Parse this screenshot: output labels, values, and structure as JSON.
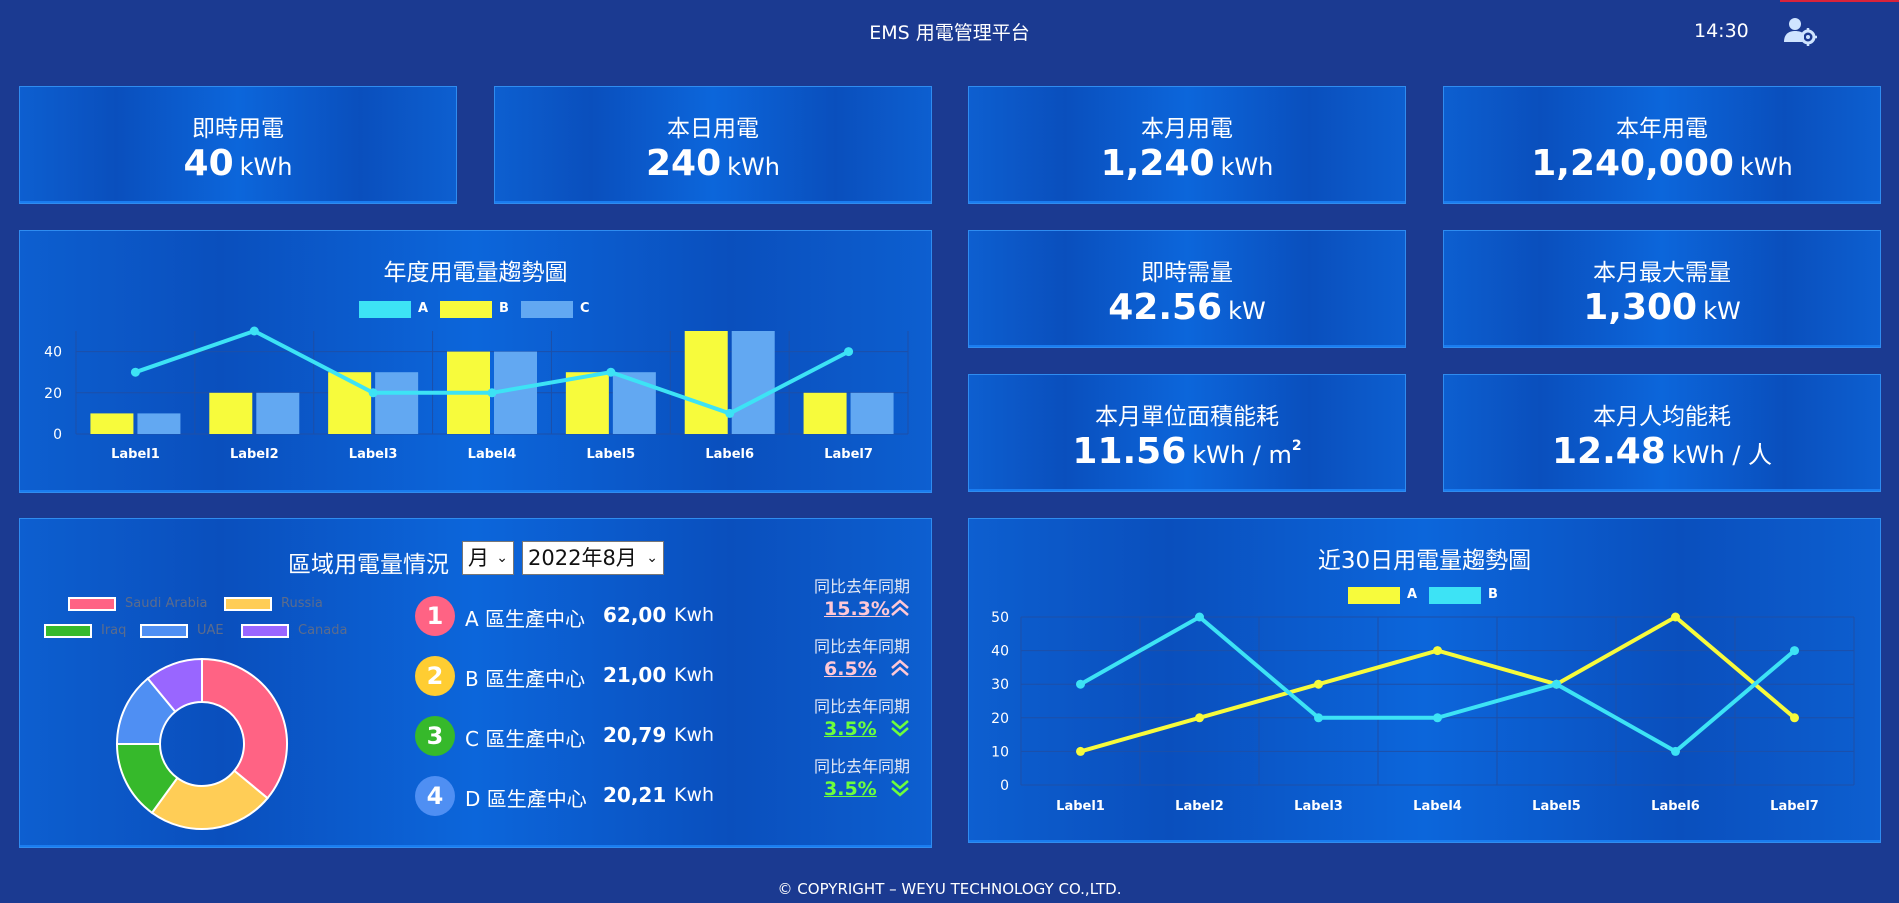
{
  "header": {
    "title": "EMS 用電管理平台",
    "time": "14:30",
    "user_icon": "user-settings-icon"
  },
  "stats": {
    "realtime": {
      "label": "即時用電",
      "value": "40",
      "unit": "kWh"
    },
    "today": {
      "label": "本日用電",
      "value": "240",
      "unit": "kWh"
    },
    "month": {
      "label": "本月用電",
      "value": "1,240",
      "unit": "kWh"
    },
    "year": {
      "label": "本年用電",
      "value": "1,240,000",
      "unit": "kWh"
    },
    "demand": {
      "label": "即時需量",
      "value": "42.56",
      "unit": "kW"
    },
    "max_demand": {
      "label": "本月最大需量",
      "value": "1,300",
      "unit": "kW"
    },
    "area": {
      "label": "本月單位面積能耗",
      "value": "11.56",
      "unit": "kWh / m",
      "unit_sup": "2"
    },
    "per_capita": {
      "label": "本月人均能耗",
      "value": "12.48",
      "unit": "kWh / 人"
    }
  },
  "annual_chart": {
    "title": "年度用電量趨勢圖",
    "chart_data": {
      "type": "bar",
      "categories": [
        "Label1",
        "Label2",
        "Label3",
        "Label4",
        "Label5",
        "Label6",
        "Label7"
      ],
      "series": [
        {
          "name": "A",
          "type": "line",
          "color": "#3de3f5",
          "values": [
            30,
            50,
            20,
            20,
            30,
            10,
            40
          ]
        },
        {
          "name": "B",
          "type": "bar",
          "color": "#f7fb3c",
          "values": [
            10,
            20,
            30,
            40,
            30,
            50,
            20
          ]
        },
        {
          "name": "C",
          "type": "bar",
          "color": "#62a8f2",
          "values": [
            10,
            20,
            30,
            40,
            30,
            50,
            20
          ]
        }
      ],
      "y_ticks": [
        0,
        20,
        40
      ],
      "ylim": [
        0,
        50
      ],
      "legend": "top-center",
      "grid": true
    }
  },
  "region": {
    "title": "區域用電量情況",
    "period_select": "月",
    "month_select": "2022年8月",
    "pie": {
      "chart_data": {
        "type": "pie",
        "donut": true,
        "labels": [
          "Saudi Arabia",
          "Russia",
          "Iraq",
          "UAE",
          "Canada"
        ],
        "colors": [
          "#ff6384",
          "#ffcd56",
          "#36b92b",
          "#4f8ff3",
          "#9966ff"
        ],
        "values": [
          36,
          24,
          15,
          14,
          11
        ],
        "legend": "top"
      }
    },
    "rows": [
      {
        "rank": "1",
        "name": "A 區生產中心",
        "value": "62,00",
        "unit": "Kwh",
        "yoy_label": "同比去年同期",
        "yoy": "15.3%",
        "trend": "up",
        "badge_color": "#ff6384",
        "yoy_color": "#ffc8d6"
      },
      {
        "rank": "2",
        "name": "B 區生產中心",
        "value": "21,00",
        "unit": "Kwh",
        "yoy_label": "同比去年同期",
        "yoy": "6.5%",
        "trend": "up",
        "badge_color": "#ffcd32",
        "yoy_color": "#ffc8d6"
      },
      {
        "rank": "3",
        "name": "C 區生產中心",
        "value": "20,79",
        "unit": "Kwh",
        "yoy_label": "同比去年同期",
        "yoy": "3.5%",
        "trend": "down",
        "badge_color": "#36b92b",
        "yoy_color": "#6dff3c"
      },
      {
        "rank": "4",
        "name": "D 區生產中心",
        "value": "20,21",
        "unit": "Kwh",
        "yoy_label": "同比去年同期",
        "yoy": "3.5%",
        "trend": "down",
        "badge_color": "#4f8ff3",
        "yoy_color": "#6dff3c"
      }
    ]
  },
  "trend30": {
    "title": "近30日用電量趨勢圖",
    "chart_data": {
      "type": "line",
      "categories": [
        "Label1",
        "Label2",
        "Label3",
        "Label4",
        "Label5",
        "Label6",
        "Label7"
      ],
      "series": [
        {
          "name": "A",
          "color": "#f7fb3c",
          "values": [
            10,
            20,
            30,
            40,
            30,
            50,
            20
          ]
        },
        {
          "name": "B",
          "color": "#3de3f5",
          "values": [
            30,
            50,
            20,
            20,
            30,
            10,
            40
          ]
        }
      ],
      "y_ticks": [
        0,
        10,
        20,
        30,
        40,
        50
      ],
      "ylim": [
        0,
        50
      ],
      "legend": "top-center",
      "grid": true
    }
  },
  "footer": "© COPYRIGHT – WEYU TECHNOLOGY CO.,LTD."
}
